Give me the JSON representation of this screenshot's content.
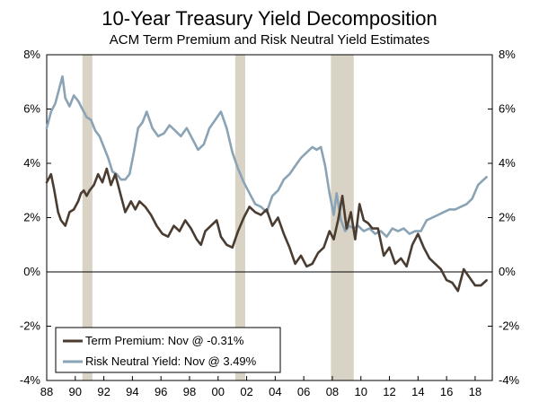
{
  "chart_data": {
    "type": "line",
    "title": "10-Year Treasury Yield Decomposition",
    "subtitle": "ACM Term Premium and Risk Neutral Yield Estimates",
    "xlabel": "",
    "ylabel": "",
    "xlim": [
      1988,
      2019.2
    ],
    "ylim": [
      -4,
      8
    ],
    "x_ticks": [
      1988,
      1990,
      1992,
      1994,
      1996,
      1998,
      2000,
      2002,
      2004,
      2006,
      2008,
      2010,
      2012,
      2014,
      2016,
      2018
    ],
    "x_tick_labels": [
      "88",
      "90",
      "92",
      "94",
      "96",
      "98",
      "00",
      "02",
      "04",
      "06",
      "08",
      "10",
      "12",
      "14",
      "16",
      "18"
    ],
    "y_ticks": [
      -4,
      -2,
      0,
      2,
      4,
      6,
      8
    ],
    "y_tick_labels": [
      "-4%",
      "-2%",
      "0%",
      "2%",
      "4%",
      "6%",
      "8%"
    ],
    "recessions": [
      {
        "start": 1990.5,
        "end": 1991.2
      },
      {
        "start": 2001.2,
        "end": 2001.9
      },
      {
        "start": 2007.9,
        "end": 2009.5
      }
    ],
    "legend_position": "bottom-left",
    "series": [
      {
        "name": "Term Premium: Nov @ -0.31%",
        "color": "#4a3c31",
        "x": [
          1988.0,
          1988.3,
          1988.5,
          1988.8,
          1989.0,
          1989.3,
          1989.6,
          1989.9,
          1990.2,
          1990.4,
          1990.6,
          1990.8,
          1991.0,
          1991.3,
          1991.6,
          1991.9,
          1992.2,
          1992.5,
          1992.8,
          1993.1,
          1993.5,
          1993.9,
          1994.2,
          1994.5,
          1994.9,
          1995.3,
          1995.7,
          1996.1,
          1996.5,
          1996.9,
          1997.3,
          1997.7,
          1998.1,
          1998.5,
          1998.8,
          1999.1,
          1999.5,
          1999.9,
          2000.2,
          2000.6,
          2001.0,
          2001.4,
          2001.8,
          2002.2,
          2002.6,
          2003.0,
          2003.4,
          2003.8,
          2004.2,
          2004.6,
          2005.0,
          2005.4,
          2005.8,
          2006.2,
          2006.6,
          2007.0,
          2007.4,
          2007.8,
          2008.1,
          2008.4,
          2008.7,
          2009.0,
          2009.3,
          2009.6,
          2009.9,
          2010.2,
          2010.5,
          2010.8,
          2011.2,
          2011.6,
          2012.0,
          2012.4,
          2012.8,
          2013.2,
          2013.6,
          2014.0,
          2014.4,
          2014.8,
          2015.2,
          2015.6,
          2016.0,
          2016.4,
          2016.8,
          2017.2,
          2017.6,
          2018.0,
          2018.4,
          2018.8
        ],
        "values": [
          3.3,
          3.6,
          3.1,
          2.2,
          1.9,
          1.7,
          2.2,
          2.3,
          2.6,
          2.9,
          3.0,
          2.8,
          3.0,
          3.2,
          3.6,
          3.3,
          3.8,
          3.2,
          3.6,
          3.0,
          2.2,
          2.6,
          2.3,
          2.6,
          2.4,
          2.1,
          1.7,
          1.4,
          1.3,
          1.7,
          1.5,
          1.9,
          1.6,
          1.2,
          1.0,
          1.5,
          1.7,
          1.9,
          1.3,
          1.0,
          0.9,
          1.5,
          2.0,
          2.4,
          2.2,
          2.1,
          2.3,
          1.7,
          2.0,
          1.4,
          0.9,
          0.3,
          0.6,
          0.2,
          0.3,
          0.7,
          0.9,
          1.5,
          1.2,
          1.9,
          2.8,
          1.6,
          2.2,
          1.2,
          2.5,
          1.9,
          1.8,
          1.6,
          1.6,
          0.6,
          0.9,
          0.3,
          0.5,
          0.2,
          1.0,
          1.4,
          0.9,
          0.5,
          0.3,
          0.1,
          -0.3,
          -0.4,
          -0.7,
          0.1,
          -0.2,
          -0.5,
          -0.5,
          -0.31
        ]
      },
      {
        "name": "Risk Neutral Yield: Nov @ 3.49%",
        "color": "#8aa3b5",
        "x": [
          1988.0,
          1988.3,
          1988.6,
          1988.9,
          1989.1,
          1989.3,
          1989.6,
          1989.9,
          1990.2,
          1990.5,
          1990.8,
          1991.1,
          1991.4,
          1991.7,
          1992.0,
          1992.3,
          1992.6,
          1992.9,
          1993.2,
          1993.5,
          1993.8,
          1994.1,
          1994.4,
          1994.7,
          1995.0,
          1995.4,
          1995.8,
          1996.2,
          1996.6,
          1997.0,
          1997.4,
          1997.8,
          1998.2,
          1998.6,
          1999.0,
          1999.4,
          1999.8,
          2000.2,
          2000.6,
          2001.0,
          2001.4,
          2001.8,
          2002.2,
          2002.6,
          2003.0,
          2003.4,
          2003.8,
          2004.2,
          2004.6,
          2005.0,
          2005.4,
          2005.8,
          2006.2,
          2006.6,
          2006.9,
          2007.2,
          2007.5,
          2007.8,
          2008.1,
          2008.3,
          2008.6,
          2008.9,
          2009.2,
          2009.5,
          2009.8,
          2010.2,
          2010.6,
          2011.0,
          2011.4,
          2011.8,
          2012.2,
          2012.6,
          2013.0,
          2013.4,
          2013.8,
          2014.2,
          2014.6,
          2015.0,
          2015.4,
          2015.8,
          2016.2,
          2016.6,
          2017.0,
          2017.4,
          2017.8,
          2018.2,
          2018.6,
          2018.8
        ],
        "values": [
          5.3,
          5.9,
          6.2,
          6.8,
          7.2,
          6.4,
          6.1,
          6.5,
          6.3,
          6.0,
          5.7,
          5.6,
          5.2,
          5.0,
          4.6,
          4.2,
          3.7,
          3.6,
          3.4,
          3.4,
          3.6,
          4.4,
          5.3,
          5.5,
          5.9,
          5.3,
          5.0,
          5.1,
          5.4,
          5.2,
          5.0,
          5.3,
          4.9,
          4.5,
          4.7,
          5.3,
          5.6,
          5.9,
          5.3,
          4.4,
          3.8,
          3.3,
          2.9,
          2.5,
          2.4,
          2.2,
          2.8,
          3.0,
          3.4,
          3.6,
          3.9,
          4.2,
          4.4,
          4.6,
          4.5,
          4.6,
          3.9,
          2.9,
          2.1,
          2.9,
          1.9,
          1.5,
          1.7,
          1.6,
          1.7,
          1.5,
          1.6,
          1.4,
          1.5,
          1.3,
          1.6,
          1.5,
          1.6,
          1.4,
          1.5,
          1.5,
          1.9,
          2.0,
          2.1,
          2.2,
          2.3,
          2.3,
          2.4,
          2.5,
          2.7,
          3.2,
          3.4,
          3.49
        ]
      }
    ]
  }
}
